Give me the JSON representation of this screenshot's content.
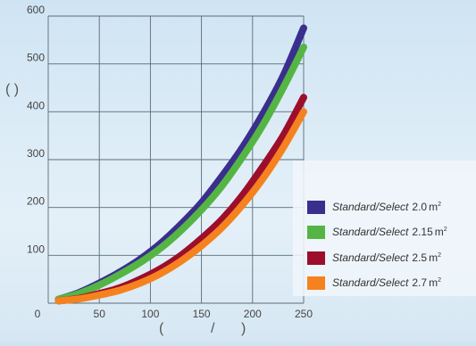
{
  "chart_data": {
    "type": "line",
    "title": "",
    "xlabel": "",
    "ylabel": "",
    "xlim": [
      0,
      250
    ],
    "ylim": [
      0,
      600
    ],
    "x_ticks": [
      0,
      50,
      100,
      150,
      200,
      250
    ],
    "y_ticks": [
      100,
      200,
      300,
      400,
      500,
      600
    ],
    "grid": true,
    "legend_position": "lower-right",
    "series": [
      {
        "name": "Standard/Select",
        "area": "2.0",
        "unit": "m",
        "unit_sup": "2",
        "color": "#3a2e8e",
        "x": [
          10,
          30,
          50,
          70,
          90,
          110,
          130,
          150,
          170,
          190,
          210,
          230,
          250
        ],
        "y": [
          8,
          22,
          42,
          65,
          92,
          125,
          165,
          210,
          265,
          325,
          395,
          475,
          575
        ]
      },
      {
        "name": "Standard/Select",
        "area": "2.15",
        "unit": "m",
        "unit_sup": "2",
        "color": "#55b544",
        "x": [
          10,
          30,
          50,
          70,
          90,
          110,
          130,
          150,
          170,
          190,
          210,
          230,
          250
        ],
        "y": [
          8,
          20,
          38,
          60,
          85,
          115,
          152,
          195,
          245,
          305,
          372,
          450,
          535
        ]
      },
      {
        "name": "Standard/Select",
        "area": "2.5",
        "unit": "m",
        "unit_sup": "2",
        "color": "#9c0e2c",
        "x": [
          10,
          30,
          50,
          70,
          90,
          110,
          130,
          150,
          170,
          190,
          210,
          230,
          250
        ],
        "y": [
          5,
          10,
          20,
          32,
          50,
          72,
          100,
          135,
          175,
          225,
          285,
          350,
          430
        ]
      },
      {
        "name": "Standard/Select",
        "area": "2.7",
        "unit": "m",
        "unit_sup": "2",
        "color": "#f5821f",
        "x": [
          10,
          30,
          50,
          70,
          90,
          110,
          130,
          150,
          170,
          190,
          210,
          230,
          250
        ],
        "y": [
          5,
          9,
          17,
          27,
          42,
          62,
          88,
          120,
          158,
          205,
          260,
          325,
          400
        ]
      }
    ],
    "ylabel_paren": "( )",
    "xlabel_paren_left": "(",
    "xlabel_slash": "/",
    "xlabel_paren_right": ")"
  }
}
